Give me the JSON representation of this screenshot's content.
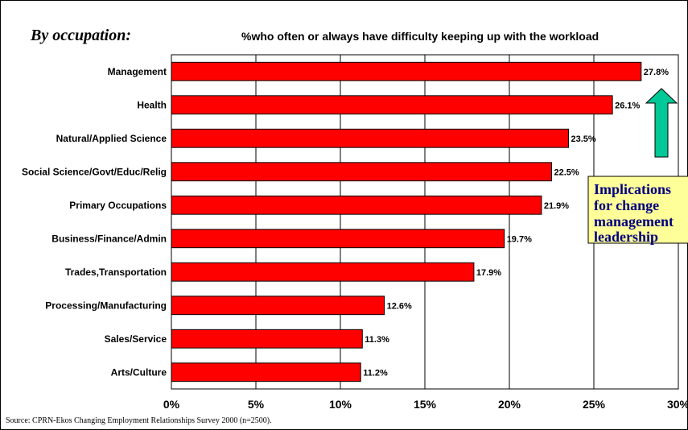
{
  "section_label": "By occupation:",
  "source": "Source: CPRN-Ekos Changing Employment Relationships Survey 2000 (n=2500).",
  "callout": {
    "lines": [
      "Implications",
      "for change",
      "management",
      "leadership"
    ]
  },
  "colors": {
    "bar": "#ff0000",
    "bar_stroke": "#000000",
    "arrow": "#00c896",
    "callout_bg": "#ffff99"
  },
  "chart_data": {
    "type": "bar",
    "orientation": "horizontal",
    "title": "%who often or always have difficulty keeping up with the workload",
    "xlabel": "",
    "ylabel": "",
    "categories": [
      "Management",
      "Health",
      "Natural/Applied Science",
      "Social Science/Govt/Educ/Relig",
      "Primary Occupations",
      "Business/Finance/Admin",
      "Trades,Transportation",
      "Processing/Manufacturing",
      "Sales/Service",
      "Arts/Culture"
    ],
    "values": [
      27.8,
      26.1,
      23.5,
      22.5,
      21.9,
      19.7,
      17.9,
      12.6,
      11.3,
      11.2
    ],
    "value_labels": [
      "27.8%",
      "26.1%",
      "23.5%",
      "22.5%",
      "21.9%",
      "19.7%",
      "17.9%",
      "12.6%",
      "11.3%",
      "11.2%"
    ],
    "xlim": [
      0,
      30
    ],
    "xticks": [
      0,
      5,
      10,
      15,
      20,
      25,
      30
    ],
    "xtick_labels": [
      "0%",
      "5%",
      "10%",
      "15%",
      "20%",
      "25%",
      "30%"
    ],
    "grid": "vertical"
  }
}
